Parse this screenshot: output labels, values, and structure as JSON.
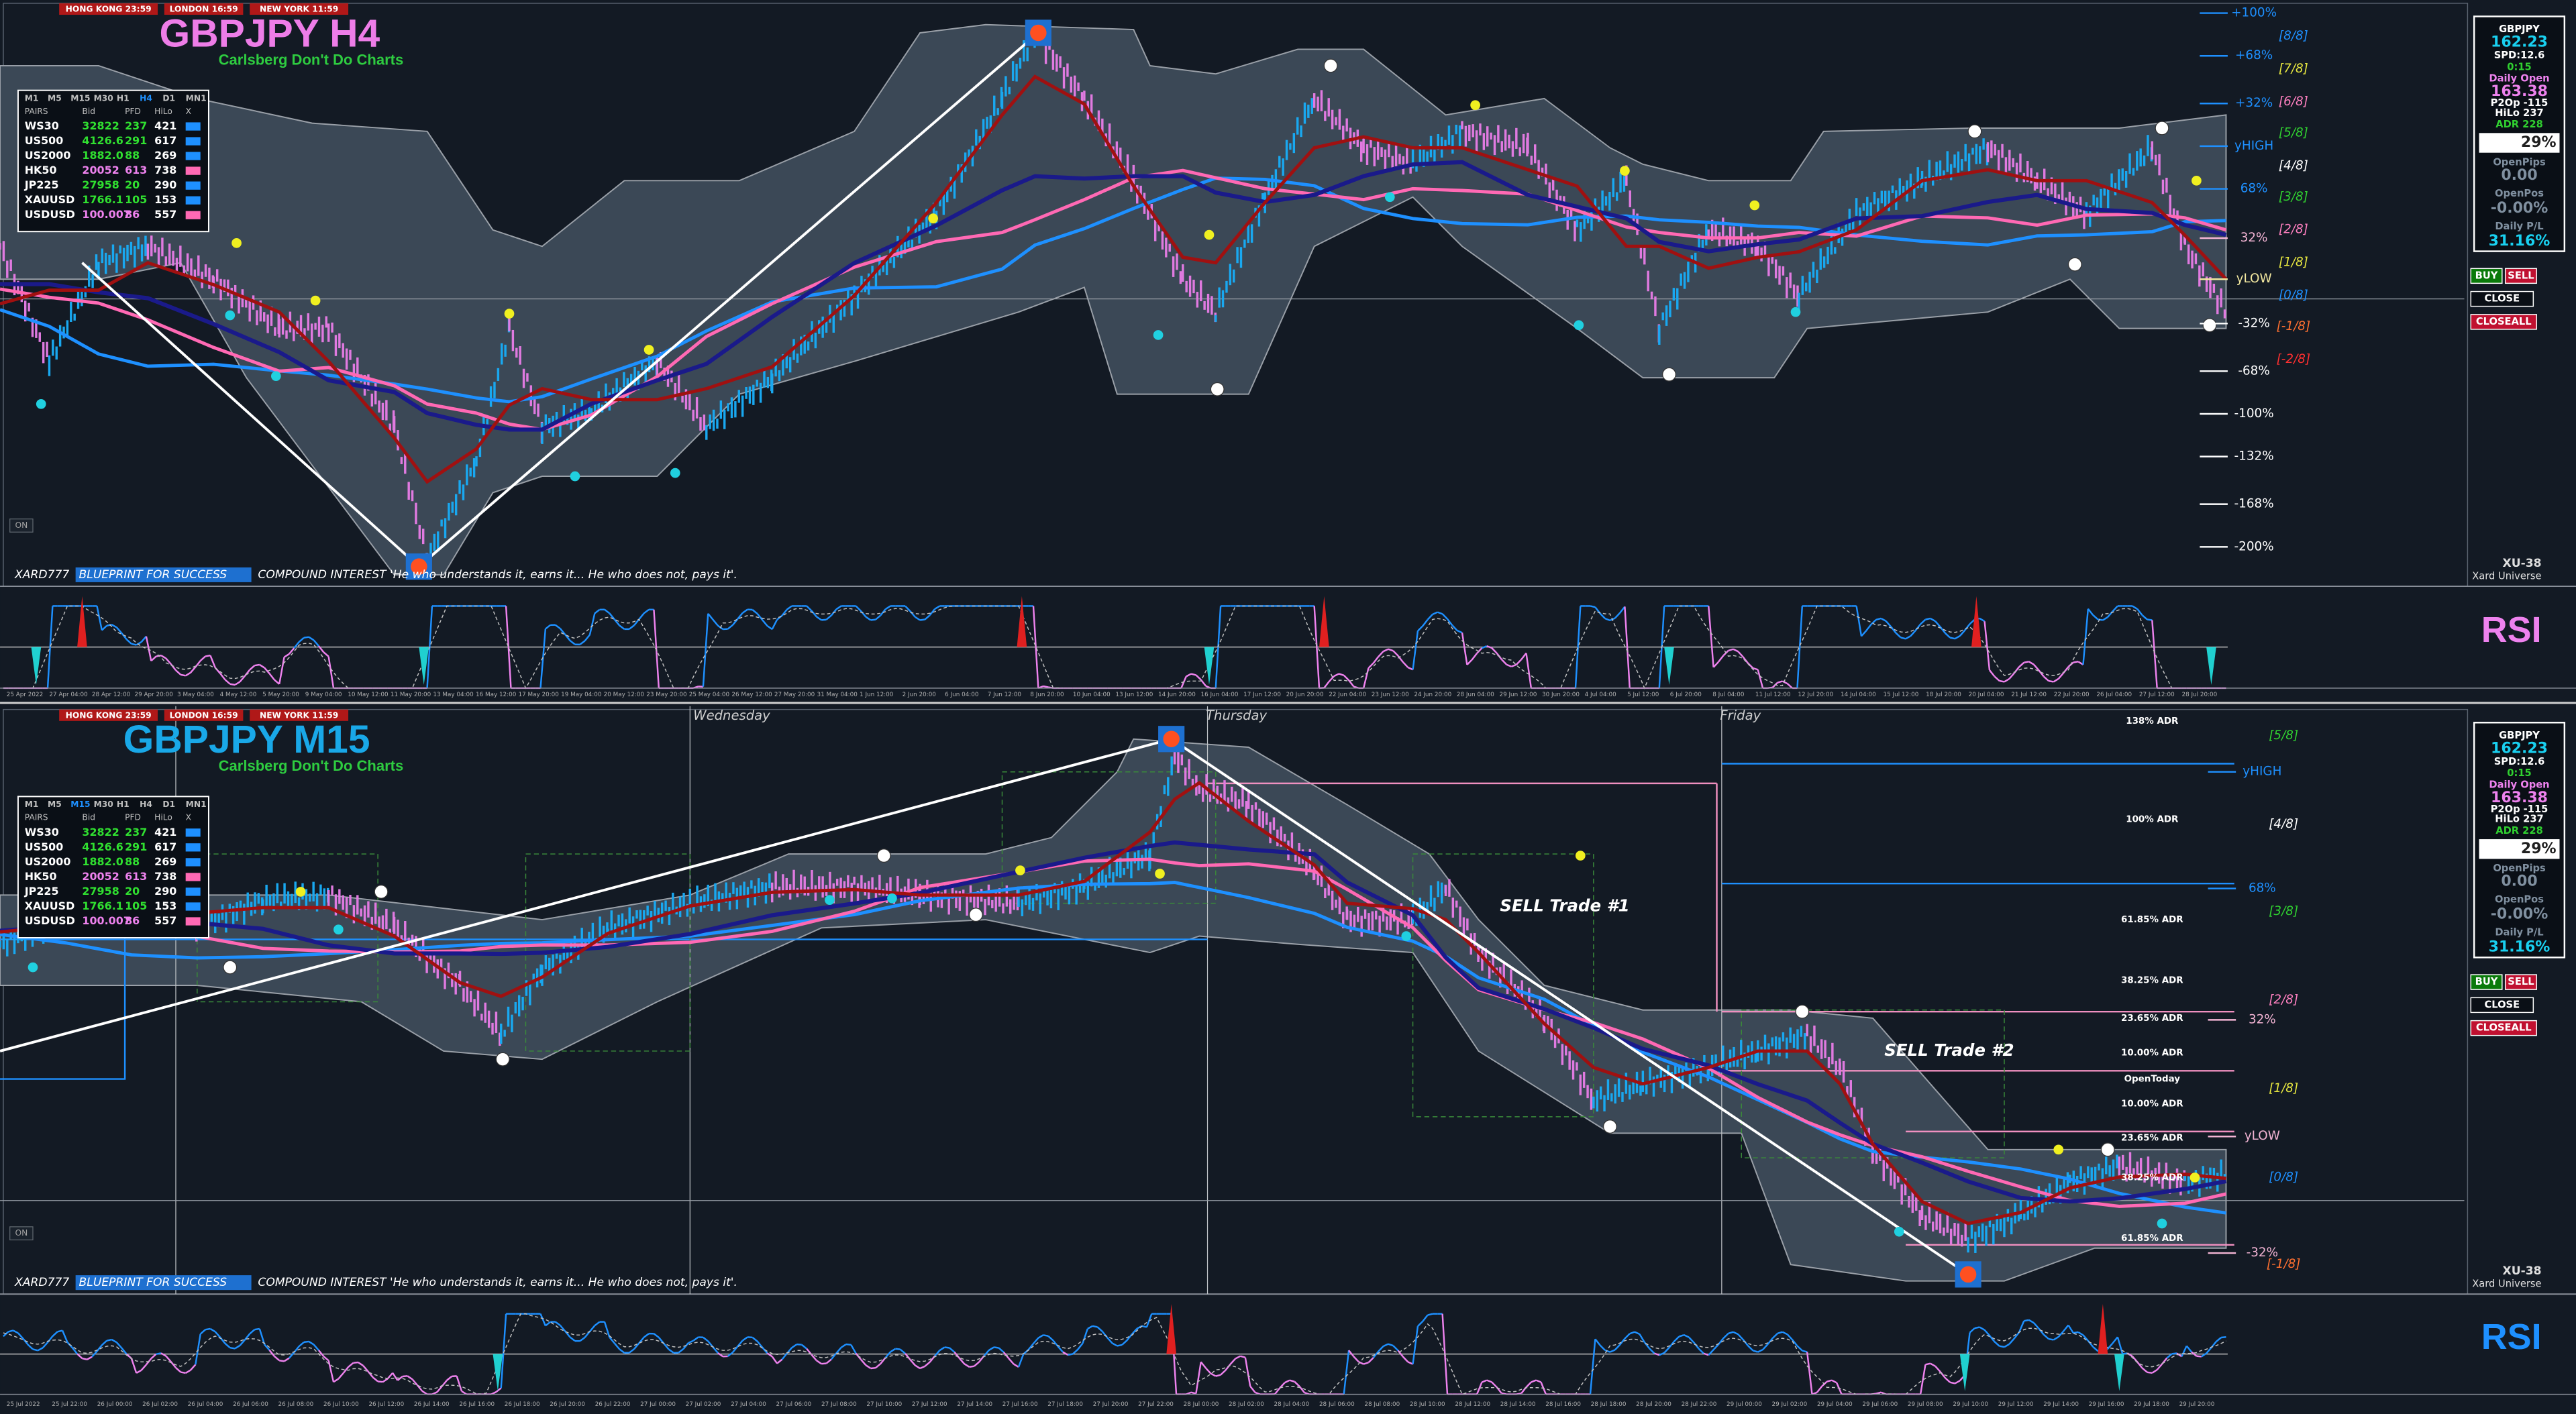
{
  "panels": [
    {
      "title": "GBPJPY H4",
      "subtitle": "Carlsberg Don't Do Charts",
      "sessions": [
        "HONG KONG 23:59",
        "LONDON 16:59",
        "NEW YORK 11:59"
      ],
      "timeframes": [
        "M1",
        "M5",
        "M15",
        "M30",
        "H1",
        "H4",
        "D1",
        "MN1"
      ],
      "table": {
        "header": [
          "PAIRS",
          "Bid",
          "PFD",
          "HiLo",
          "X"
        ],
        "rows": [
          [
            "WS30",
            "32822",
            "237",
            "421"
          ],
          [
            "US500",
            "4126.6",
            "291",
            "617"
          ],
          [
            "US2000",
            "1882.0",
            "88",
            "269"
          ],
          [
            "HK50",
            "20052",
            "613",
            "738"
          ],
          [
            "JP225",
            "27958",
            "20",
            "290"
          ],
          [
            "XAUUSD",
            "1766.1",
            "105",
            "153"
          ],
          [
            "USDUSD",
            "100.007",
            "86",
            "557"
          ]
        ]
      },
      "levels": [
        {
          "label": "+100%",
          "color": "#1e90ff"
        },
        {
          "label": "+68%",
          "color": "#1e90ff"
        },
        {
          "label": "+32%",
          "color": "#1e90ff"
        },
        {
          "label": "yHIGH",
          "color": "#1e90ff"
        },
        {
          "label": "68%",
          "color": "#1e90ff"
        },
        {
          "label": "32%",
          "color": "#f3b4d4"
        },
        {
          "label": "yLOW",
          "color": "#f3e8a0"
        },
        {
          "label": "-32%",
          "color": "#ffffff"
        },
        {
          "label": "-68%",
          "color": "#ffffff"
        },
        {
          "label": "-100%",
          "color": "#ffffff"
        },
        {
          "label": "-132%",
          "color": "#ffffff"
        },
        {
          "label": "-168%",
          "color": "#ffffff"
        },
        {
          "label": "-200%",
          "color": "#ffffff"
        }
      ],
      "murrey": [
        {
          "label": "[8/8]",
          "color": "#1e90ff"
        },
        {
          "label": "[7/8]",
          "color": "#e8e840"
        },
        {
          "label": "[6/8]",
          "color": "#ff80c0"
        },
        {
          "label": "[5/8]",
          "color": "#30d030"
        },
        {
          "label": "[4/8]",
          "color": "#ffffff"
        },
        {
          "label": "[3/8]",
          "color": "#30d030"
        },
        {
          "label": "[2/8]",
          "color": "#ff80c0"
        },
        {
          "label": "[1/8]",
          "color": "#e8e840"
        },
        {
          "label": "[0/8]",
          "color": "#1e90ff"
        },
        {
          "label": "[-1/8]",
          "color": "#ff7030"
        },
        {
          "label": "[-2/8]",
          "color": "#ff3030"
        }
      ],
      "footer": {
        "author": "XARD777",
        "tag": "BLUEPRINT FOR SUCCESS",
        "quote": "COMPOUND INTEREST 'He who understands it, earns it... He who does not, pays it'."
      },
      "brand": "XU-38",
      "brand_sub": "Xard Universe",
      "indicator": "RSI",
      "toggle": "ON",
      "times": [
        "25 Apr 2022",
        "27 Apr 04:00",
        "28 Apr 12:00",
        "29 Apr 20:00",
        "3 May 04:00",
        "4 May 12:00",
        "5 May 20:00",
        "9 May 04:00",
        "10 May 12:00",
        "11 May 20:00",
        "13 May 04:00",
        "16 May 12:00",
        "17 May 20:00",
        "19 May 04:00",
        "20 May 12:00",
        "23 May 20:00",
        "25 May 04:00",
        "26 May 12:00",
        "27 May 20:00",
        "31 May 04:00",
        "1 Jun 12:00",
        "2 Jun 20:00",
        "6 Jun 04:00",
        "7 Jun 12:00",
        "8 Jun 20:00",
        "10 Jun 04:00",
        "13 Jun 12:00",
        "14 Jun 20:00",
        "16 Jun 04:00",
        "17 Jun 12:00",
        "20 Jun 20:00",
        "22 Jun 04:00",
        "23 Jun 12:00",
        "24 Jun 20:00",
        "28 Jun 04:00",
        "29 Jun 12:00",
        "30 Jun 20:00",
        "4 Jul 04:00",
        "5 Jul 12:00",
        "6 Jul 20:00",
        "8 Jul 04:00",
        "11 Jul 12:00",
        "12 Jul 20:00",
        "14 Jul 04:00",
        "15 Jul 12:00",
        "18 Jul 20:00",
        "20 Jul 04:00",
        "21 Jul 12:00",
        "22 Jul 20:00",
        "26 Jul 04:00",
        "27 Jul 12:00",
        "28 Jul 20:00"
      ],
      "info": [
        {
          "text": "GBPJPY",
          "color": "#ffffff"
        },
        {
          "text": "162.23",
          "color": "#19d0f0"
        },
        {
          "text": "SPD:12.6",
          "color": "#ffffff"
        },
        {
          "text": "0:15",
          "color": "#30d030"
        },
        {
          "text": "Daily Open",
          "color": "#ee82ee"
        },
        {
          "text": "163.38",
          "color": "#ee82ee"
        },
        {
          "text": "P2Op -115",
          "color": "#ffffff"
        },
        {
          "text": "HiLo 237",
          "color": "#ffffff"
        },
        {
          "text": "ADR 228",
          "color": "#30d030"
        },
        {
          "text": "29%",
          "color": "#ffffff"
        },
        {
          "text": "OpenPips",
          "color": "#8090a0"
        },
        {
          "text": "0.00",
          "color": "#8090a0"
        },
        {
          "text": "OpenPos",
          "color": "#8090a0"
        },
        {
          "text": "-0.00%",
          "color": "#8090a0"
        },
        {
          "text": "Daily P/L",
          "color": "#8090a0"
        },
        {
          "text": "31.16%",
          "color": "#19d0f0"
        }
      ],
      "buttons": [
        "BUY",
        "SELL",
        "CLOSE",
        "CLOSEALL"
      ]
    },
    {
      "title": "GBPJPY M15",
      "subtitle": "Carlsberg Don't Do Charts",
      "sessions": [
        "HONG KONG 23:59",
        "LONDON 16:59",
        "NEW YORK 11:59"
      ],
      "timeframes": [
        "M1",
        "M5",
        "M15",
        "M30",
        "H1",
        "H4",
        "D1",
        "MN1"
      ],
      "table": {
        "header": [
          "PAIRS",
          "Bid",
          "PFD",
          "HiLo",
          "X"
        ],
        "rows": [
          [
            "WS30",
            "32822",
            "237",
            "421"
          ],
          [
            "US500",
            "4126.6",
            "291",
            "617"
          ],
          [
            "US2000",
            "1882.0",
            "88",
            "269"
          ],
          [
            "HK50",
            "20052",
            "613",
            "738"
          ],
          [
            "JP225",
            "27958",
            "20",
            "290"
          ],
          [
            "XAUUSD",
            "1766.1",
            "105",
            "153"
          ],
          [
            "USDUSD",
            "100.007",
            "86",
            "557"
          ]
        ]
      },
      "levels": [
        {
          "label": "yHIGH",
          "color": "#1e90ff"
        },
        {
          "label": "68%",
          "color": "#1e90ff"
        },
        {
          "label": "32%",
          "color": "#f3b4d4"
        },
        {
          "label": "yLOW",
          "color": "#f3b4d4"
        },
        {
          "label": "-32%",
          "color": "#f3b4d4"
        }
      ],
      "murrey": [
        {
          "label": "[5/8]",
          "color": "#30d030"
        },
        {
          "label": "[4/8]",
          "color": "#ffffff"
        },
        {
          "label": "[3/8]",
          "color": "#30d030"
        },
        {
          "label": "[2/8]",
          "color": "#ff80c0"
        },
        {
          "label": "[1/8]",
          "color": "#e8e840"
        },
        {
          "label": "[0/8]",
          "color": "#1e90ff"
        },
        {
          "label": "[-1/8]",
          "color": "#ff7030"
        }
      ],
      "adr": [
        "138% ADR",
        "100% ADR",
        "61.85% ADR",
        "38.25% ADR",
        "23.65% ADR",
        "10.00% ADR",
        "OpenToday",
        "10.00% ADR",
        "23.65% ADR",
        "38.25% ADR",
        "61.85% ADR"
      ],
      "days": [
        "Wednesday",
        "Thursday",
        "Friday"
      ],
      "trades": [
        "SELL Trade #1",
        "SELL Trade #2"
      ],
      "footer": {
        "author": "XARD777",
        "tag": "BLUEPRINT FOR SUCCESS",
        "quote": "COMPOUND INTEREST 'He who understands it, earns it... He who does not, pays it'."
      },
      "brand": "XU-38",
      "brand_sub": "Xard Universe",
      "indicator": "RSI",
      "toggle": "ON",
      "times": [
        "25 Jul 2022",
        "25 Jul 22:00",
        "26 Jul 00:00",
        "26 Jul 02:00",
        "26 Jul 04:00",
        "26 Jul 06:00",
        "26 Jul 08:00",
        "26 Jul 10:00",
        "26 Jul 12:00",
        "26 Jul 14:00",
        "26 Jul 16:00",
        "26 Jul 18:00",
        "26 Jul 20:00",
        "26 Jul 22:00",
        "27 Jul 00:00",
        "27 Jul 02:00",
        "27 Jul 04:00",
        "27 Jul 06:00",
        "27 Jul 08:00",
        "27 Jul 10:00",
        "27 Jul 12:00",
        "27 Jul 14:00",
        "27 Jul 16:00",
        "27 Jul 18:00",
        "27 Jul 20:00",
        "27 Jul 22:00",
        "28 Jul 00:00",
        "28 Jul 02:00",
        "28 Jul 04:00",
        "28 Jul 06:00",
        "28 Jul 08:00",
        "28 Jul 10:00",
        "28 Jul 12:00",
        "28 Jul 14:00",
        "28 Jul 16:00",
        "28 Jul 18:00",
        "28 Jul 20:00",
        "28 Jul 22:00",
        "29 Jul 00:00",
        "29 Jul 02:00",
        "29 Jul 04:00",
        "29 Jul 06:00",
        "29 Jul 08:00",
        "29 Jul 10:00",
        "29 Jul 12:00",
        "29 Jul 14:00",
        "29 Jul 16:00",
        "29 Jul 18:00",
        "29 Jul 20:00"
      ],
      "info": [
        {
          "text": "GBPJPY",
          "color": "#ffffff"
        },
        {
          "text": "162.23",
          "color": "#19d0f0"
        },
        {
          "text": "SPD:12.6",
          "color": "#ffffff"
        },
        {
          "text": "0:15",
          "color": "#30d030"
        },
        {
          "text": "Daily Open",
          "color": "#ee82ee"
        },
        {
          "text": "163.38",
          "color": "#ee82ee"
        },
        {
          "text": "P2Op -115",
          "color": "#ffffff"
        },
        {
          "text": "HiLo 237",
          "color": "#ffffff"
        },
        {
          "text": "ADR 228",
          "color": "#30d030"
        },
        {
          "text": "29%",
          "color": "#ffffff"
        },
        {
          "text": "OpenPips",
          "color": "#8090a0"
        },
        {
          "text": "0.00",
          "color": "#8090a0"
        },
        {
          "text": "OpenPos",
          "color": "#8090a0"
        },
        {
          "text": "-0.00%",
          "color": "#8090a0"
        },
        {
          "text": "Daily P/L",
          "color": "#8090a0"
        },
        {
          "text": "31.16%",
          "color": "#19d0f0"
        }
      ],
      "buttons": [
        "BUY",
        "SELL",
        "CLOSE",
        "CLOSEALL"
      ]
    }
  ]
}
